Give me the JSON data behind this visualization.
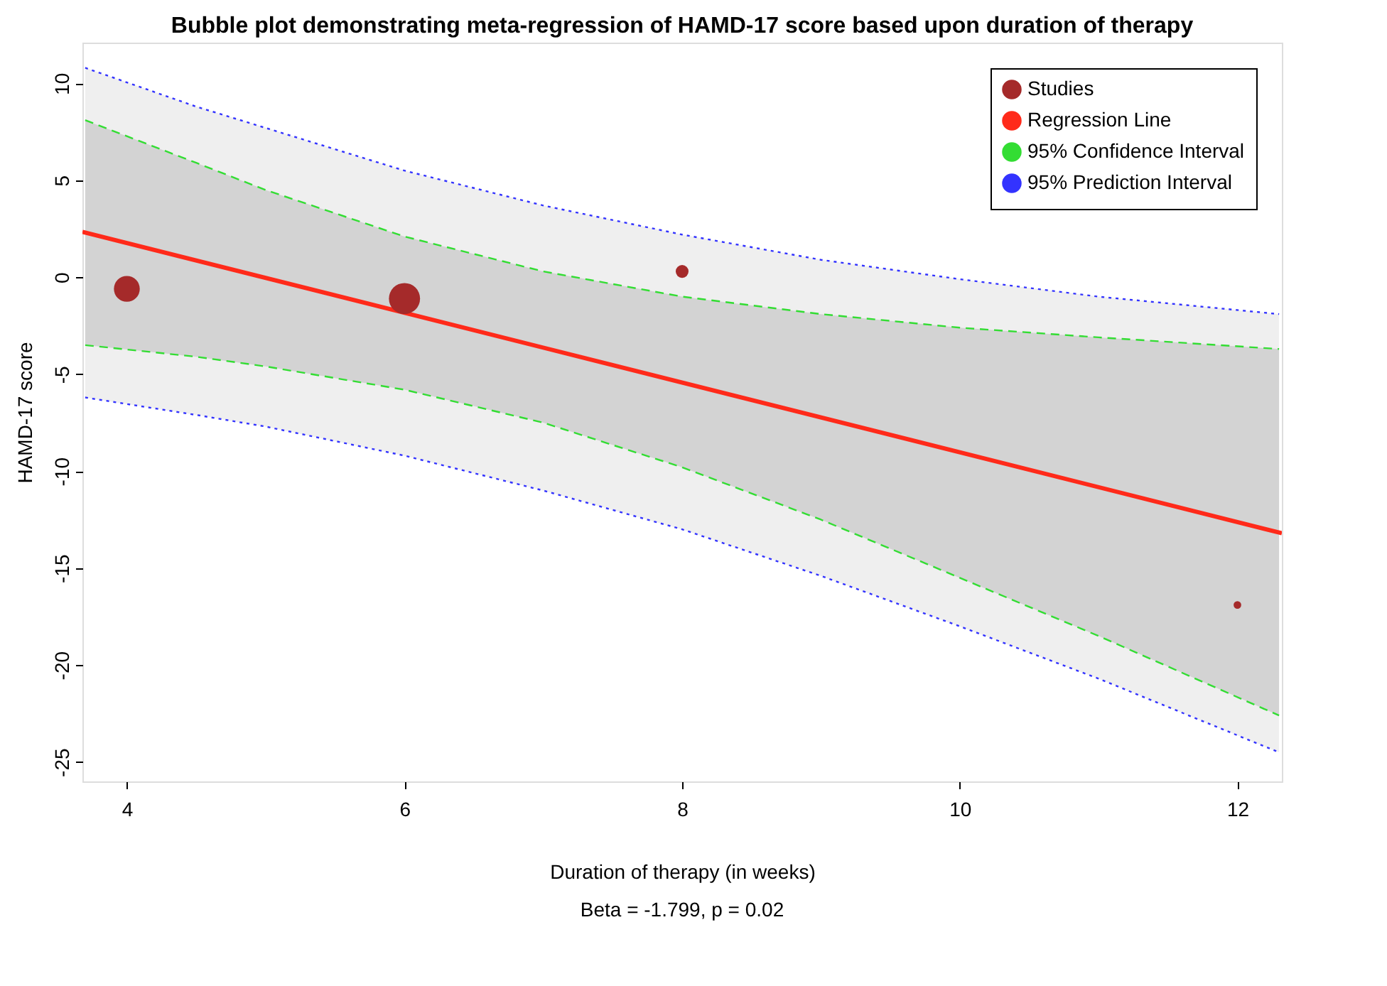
{
  "chart_data": {
    "type": "bubble",
    "title": "Bubble plot demonstrating meta-regression of HAMD-17 score based upon duration of therapy",
    "xlabel": "Duration of therapy (in weeks)",
    "ylabel": "HAMD-17 score",
    "annotations": [
      "Beta = -1.799, p = 0.02"
    ],
    "xlim": [
      3.68,
      12.32
    ],
    "ylim": [
      -26.0,
      12.1
    ],
    "xticks": [
      4,
      6,
      8,
      10,
      12
    ],
    "yticks": [
      -25,
      -20,
      -15,
      -10,
      -5,
      0,
      5,
      10
    ],
    "grid": false,
    "legend": "top right",
    "series": [
      {
        "name": "Studies",
        "color": "#a52a2a",
        "x": [
          4,
          6,
          8,
          12
        ],
        "values": [
          -0.6,
          -1.1,
          0.3,
          -16.9
        ],
        "sizes": [
          0.69,
          1,
          0.17,
          0.06
        ]
      },
      {
        "name": "Regression Line",
        "type": "line",
        "color": "#ff2a1a",
        "line_style": "solid",
        "x": [
          3.68,
          12.32
        ],
        "values": [
          2.34,
          -13.2
        ]
      },
      {
        "name": "95% Confidence Interval",
        "type": "line",
        "color": "#33dd33",
        "line_style": "dashed",
        "x": [
          3.7,
          4.5,
          5,
          6,
          7,
          8,
          9,
          10,
          11,
          12.3
        ],
        "values": [
          8.1,
          5.9,
          4.5,
          2.1,
          0.3,
          -1.0,
          -1.9,
          -2.6,
          -3.1,
          -3.7
        ],
        "lower": [
          -3.5,
          -4.1,
          -4.6,
          -5.8,
          -7.5,
          -9.8,
          -12.5,
          -15.5,
          -18.5,
          -22.6
        ],
        "upper": [
          8.1,
          5.9,
          4.5,
          2.1,
          0.3,
          -1.0,
          -1.9,
          -2.6,
          -3.1,
          -3.7
        ]
      },
      {
        "type": "line",
        "color": "#33dd33",
        "line_style": "dashed",
        "x": [
          3.7,
          4.5,
          5,
          6,
          7,
          8,
          9,
          10,
          11,
          12.3
        ],
        "values": [
          -3.5,
          -4.1,
          -4.6,
          -5.8,
          -7.5,
          -9.8,
          -12.5,
          -15.5,
          -18.5,
          -22.6
        ]
      },
      {
        "name": "95% Prediction Interval",
        "type": "line",
        "color": "#3333ff",
        "line_style": "dotted",
        "x": [
          3.7,
          4.5,
          5,
          6,
          7,
          8,
          9,
          10,
          11,
          12.3
        ],
        "values": [
          10.8,
          8.8,
          7.7,
          5.5,
          3.7,
          2.2,
          0.9,
          -0.1,
          -1.0,
          -1.9
        ],
        "lower": [
          -6.2,
          -7.1,
          -7.7,
          -9.2,
          -11.0,
          -13.0,
          -15.4,
          -18.0,
          -20.7,
          -24.5
        ],
        "upper": [
          10.8,
          8.8,
          7.7,
          5.5,
          3.7,
          2.2,
          0.9,
          -0.1,
          -1.0,
          -1.9
        ]
      },
      {
        "type": "line",
        "color": "#3333ff",
        "line_style": "dotted",
        "x": [
          3.7,
          4.5,
          5,
          6,
          7,
          8,
          9,
          10,
          11,
          12.3
        ],
        "values": [
          -6.2,
          -7.1,
          -7.7,
          -9.2,
          -11.0,
          -13.0,
          -15.4,
          -18.0,
          -20.7,
          -24.5
        ]
      }
    ]
  }
}
